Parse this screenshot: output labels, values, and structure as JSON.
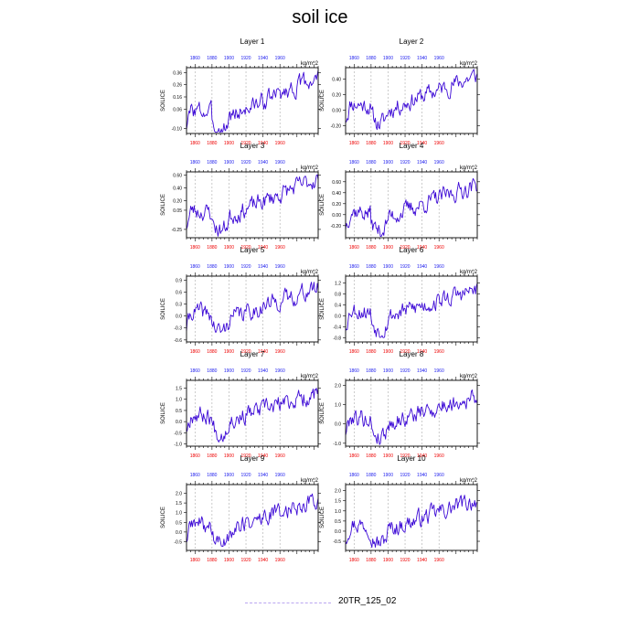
{
  "title": "soil ice",
  "colors": {
    "series": "#3d0ad6",
    "bottom_ticks": "#ee0000",
    "top_ticks": "#2020ee",
    "legend_line": "#b9a6f0",
    "gridline": "#aaaaaa"
  },
  "legend": {
    "label": "20TR_125_02",
    "style": "dashed"
  },
  "chart_data": [
    {
      "type": "line",
      "title": "Layer 1",
      "ylabel": "SOILICE",
      "units": "kg/m^2",
      "xlim": [
        1850,
        2005
      ],
      "ylim": [
        -0.14,
        0.4
      ],
      "yticks": [
        -0.1,
        0.06,
        0.16,
        0.26,
        0.36
      ],
      "ytick_labels": [
        "-0.10",
        "0.06",
        "0.16",
        "0.26",
        "0.36"
      ],
      "bottom_ticks": [
        1860,
        1880,
        1900,
        1920,
        1940,
        1960
      ],
      "top_ticks": [
        1860,
        1880,
        1900,
        1920,
        1940,
        1960
      ],
      "grid": "dashed vertical",
      "start": -0.08,
      "end": 0.32,
      "seed": 3
    },
    {
      "type": "line",
      "title": "Layer 2",
      "ylabel": "SOILICE",
      "units": "kg/m^2",
      "xlim": [
        1850,
        2005
      ],
      "ylim": [
        -0.3,
        0.55
      ],
      "yticks": [
        -0.2,
        0.0,
        0.2,
        0.4
      ],
      "ytick_labels": [
        "-0.20",
        "0.00",
        "0.20",
        "0.40"
      ],
      "bottom_ticks": [
        1860,
        1880,
        1900,
        1920,
        1940,
        1960
      ],
      "top_ticks": [
        1860,
        1880,
        1900,
        1920,
        1940,
        1960
      ],
      "grid": "dashed vertical",
      "start": -0.12,
      "end": 0.45,
      "seed": 11
    },
    {
      "type": "line",
      "title": "Layer 3",
      "ylabel": "SOILICE",
      "units": "kg/m^2",
      "xlim": [
        1850,
        2005
      ],
      "ylim": [
        -0.38,
        0.65
      ],
      "yticks": [
        -0.25,
        0.05,
        0.2,
        0.4,
        0.6
      ],
      "ytick_labels": [
        "-0.25",
        "0.05",
        "0.20",
        "0.40",
        "0.60"
      ],
      "bottom_ticks": [
        1860,
        1880,
        1900,
        1920,
        1940,
        1960
      ],
      "top_ticks": [
        1860,
        1880,
        1900,
        1920,
        1940,
        1960
      ],
      "grid": "dashed vertical",
      "start": -0.2,
      "end": 0.55,
      "seed": 23
    },
    {
      "type": "line",
      "title": "Layer 4",
      "ylabel": "SOILICE",
      "units": "kg/m^2",
      "xlim": [
        1850,
        2005
      ],
      "ylim": [
        -0.42,
        0.78
      ],
      "yticks": [
        -0.2,
        0.0,
        0.2,
        0.4,
        0.6
      ],
      "ytick_labels": [
        "-0.20",
        "0.00",
        "0.20",
        "0.40",
        "0.60"
      ],
      "bottom_ticks": [
        1860,
        1880,
        1900,
        1920,
        1940,
        1960
      ],
      "top_ticks": [
        1860,
        1880,
        1900,
        1920,
        1940,
        1960
      ],
      "grid": "dashed vertical",
      "start": -0.22,
      "end": 0.55,
      "seed": 37
    },
    {
      "type": "line",
      "title": "Layer 5",
      "ylabel": "SOILICE",
      "units": "kg/m^2",
      "xlim": [
        1850,
        2005
      ],
      "ylim": [
        -0.65,
        1.0
      ],
      "yticks": [
        -0.6,
        -0.3,
        0.0,
        0.3,
        0.6,
        0.9
      ],
      "ytick_labels": [
        "-0.6",
        "-0.3",
        "0.0",
        "0.3",
        "0.6",
        "0.9"
      ],
      "bottom_ticks": [
        1860,
        1880,
        1900,
        1920,
        1940,
        1960
      ],
      "top_ticks": [
        1860,
        1880,
        1900,
        1920,
        1940,
        1960
      ],
      "grid": "dashed vertical",
      "start": -0.3,
      "end": 0.7,
      "seed": 41
    },
    {
      "type": "line",
      "title": "Layer 6",
      "ylabel": "SOILICE",
      "units": "kg/m^2",
      "xlim": [
        1850,
        2005
      ],
      "ylim": [
        -0.95,
        1.45
      ],
      "yticks": [
        -0.8,
        -0.4,
        0.0,
        0.4,
        0.8,
        1.2
      ],
      "ytick_labels": [
        "-0.8",
        "-0.4",
        "0.0",
        "0.4",
        "0.8",
        "1.2"
      ],
      "bottom_ticks": [
        1860,
        1880,
        1900,
        1920,
        1940,
        1960
      ],
      "top_ticks": [
        1860,
        1880,
        1900,
        1920,
        1940,
        1960
      ],
      "grid": "dashed vertical",
      "start": -0.35,
      "end": 0.95,
      "seed": 53
    },
    {
      "type": "line",
      "title": "Layer 7",
      "ylabel": "SOILICE",
      "units": "kg/m^2",
      "xlim": [
        1850,
        2005
      ],
      "ylim": [
        -1.1,
        1.85
      ],
      "yticks": [
        -1.0,
        -0.5,
        0.0,
        0.5,
        1.0,
        1.5
      ],
      "ytick_labels": [
        "-1.0",
        "-0.5",
        "0.0",
        "0.5",
        "1.0",
        "1.5"
      ],
      "bottom_ticks": [
        1860,
        1880,
        1900,
        1920,
        1940,
        1960
      ],
      "top_ticks": [
        1860,
        1880,
        1900,
        1920,
        1940,
        1960
      ],
      "grid": "dashed vertical",
      "start": -0.35,
      "end": 1.25,
      "seed": 67
    },
    {
      "type": "line",
      "title": "Layer 8",
      "ylabel": "SOILICE",
      "units": "kg/m^2",
      "xlim": [
        1850,
        2005
      ],
      "ylim": [
        -1.15,
        2.25
      ],
      "yticks": [
        -1.0,
        0.0,
        1.0,
        2.0
      ],
      "ytick_labels": [
        "-1.0",
        "0.0",
        "1.0",
        "2.0"
      ],
      "bottom_ticks": [
        1860,
        1880,
        1900,
        1920,
        1940,
        1960
      ],
      "top_ticks": [
        1860,
        1880,
        1900,
        1920,
        1940,
        1960
      ],
      "grid": "dashed vertical",
      "start": -0.45,
      "end": 1.45,
      "seed": 79
    },
    {
      "type": "line",
      "title": "Layer 9",
      "ylabel": "SOILICE",
      "units": "kg/m^2",
      "xlim": [
        1850,
        2005
      ],
      "ylim": [
        -0.95,
        2.45
      ],
      "yticks": [
        -0.5,
        0.0,
        0.5,
        1.0,
        1.5,
        2.0
      ],
      "ytick_labels": [
        "-0.5",
        "0.0",
        "0.5",
        "1.0",
        "1.5",
        "2.0"
      ],
      "bottom_ticks": [
        1860,
        1880,
        1900,
        1920,
        1940,
        1960
      ],
      "top_ticks": [
        1860,
        1880,
        1900,
        1920,
        1940,
        1960
      ],
      "grid": "dashed vertical",
      "start": -0.4,
      "end": 1.7,
      "seed": 89
    },
    {
      "type": "line",
      "title": "Layer 10",
      "ylabel": "SOILICE",
      "units": "kg/m^2",
      "xlim": [
        1850,
        2005
      ],
      "ylim": [
        -0.95,
        2.3
      ],
      "yticks": [
        -0.5,
        0.0,
        0.5,
        1.0,
        1.5,
        2.0
      ],
      "ytick_labels": [
        "-0.5",
        "0.0",
        "0.5",
        "1.0",
        "1.5",
        "2.0"
      ],
      "bottom_ticks": [
        1860,
        1880,
        1900,
        1920,
        1940,
        1960
      ],
      "top_ticks": [
        1860,
        1880,
        1900,
        1920,
        1940,
        1960
      ],
      "grid": "dashed vertical",
      "start": -0.4,
      "end": 1.55,
      "seed": 97
    }
  ]
}
